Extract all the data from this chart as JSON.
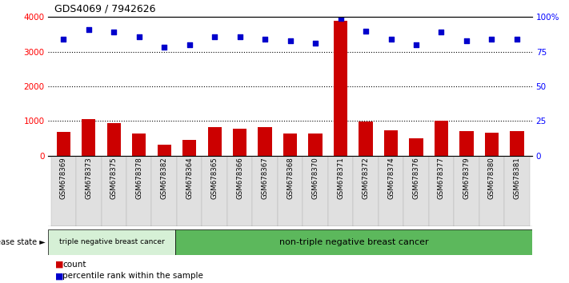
{
  "title": "GDS4069 / 7942626",
  "samples": [
    "GSM678369",
    "GSM678373",
    "GSM678375",
    "GSM678378",
    "GSM678382",
    "GSM678364",
    "GSM678365",
    "GSM678366",
    "GSM678367",
    "GSM678368",
    "GSM678370",
    "GSM678371",
    "GSM678372",
    "GSM678374",
    "GSM678376",
    "GSM678377",
    "GSM678379",
    "GSM678380",
    "GSM678381"
  ],
  "counts": [
    680,
    1060,
    950,
    650,
    310,
    460,
    820,
    770,
    820,
    650,
    630,
    3900,
    980,
    720,
    500,
    1010,
    710,
    660,
    700
  ],
  "percentiles": [
    84,
    91,
    89,
    86,
    78,
    80,
    86,
    86,
    84,
    83,
    81,
    99,
    90,
    84,
    80,
    89,
    83,
    84,
    84
  ],
  "group1_count": 5,
  "group2_count": 14,
  "group1_label": "triple negative breast cancer",
  "group2_label": "non-triple negative breast cancer",
  "group1_color": "#d6f0d6",
  "group2_color": "#5cb85c",
  "bar_color": "#cc0000",
  "dot_color": "#0000cc",
  "ylim_left": [
    0,
    4000
  ],
  "ylim_right": [
    0,
    100
  ],
  "yticks_left": [
    0,
    1000,
    2000,
    3000,
    4000
  ],
  "yticks_right": [
    0,
    25,
    50,
    75,
    100
  ],
  "ytick_labels_right": [
    "0",
    "25",
    "50",
    "75",
    "100%"
  ],
  "grid_lines": [
    1000,
    2000,
    3000
  ]
}
